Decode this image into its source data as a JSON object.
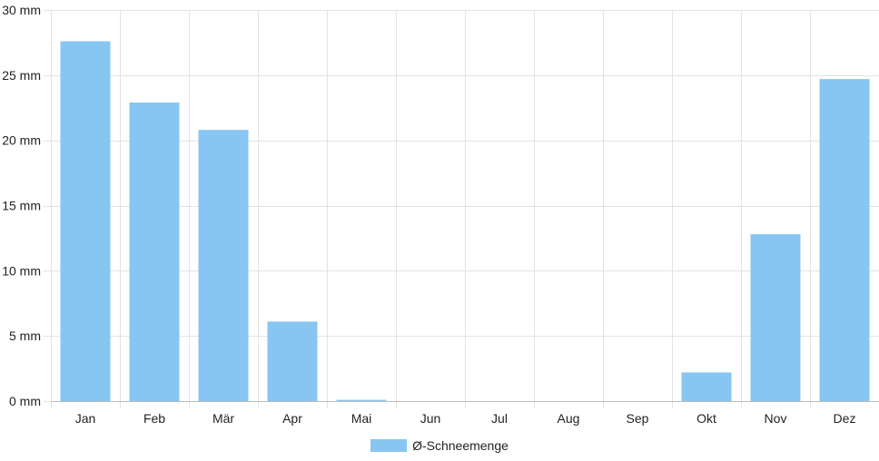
{
  "chart_data": {
    "type": "bar",
    "categories": [
      "Jan",
      "Feb",
      "Mär",
      "Apr",
      "Mai",
      "Jun",
      "Jul",
      "Aug",
      "Sep",
      "Okt",
      "Nov",
      "Dez"
    ],
    "series": [
      {
        "name": "Ø-Schneemenge",
        "values": [
          27.6,
          22.9,
          20.8,
          6.1,
          0.1,
          0,
          0,
          0,
          0,
          2.2,
          12.8,
          24.7
        ],
        "color": "#87c6f2"
      }
    ],
    "unit": "mm",
    "ylim": [
      0,
      30
    ],
    "yticks": [
      0,
      5,
      10,
      15,
      20,
      25,
      30
    ],
    "ytick_labels": [
      "0 mm",
      "5 mm",
      "10 mm",
      "15 mm",
      "20 mm",
      "25 mm",
      "30 mm"
    ],
    "grid": true,
    "legend_position": "bottom"
  },
  "colors": {
    "bar": "#87c6f2",
    "grid": "#e3e3e3",
    "axis": "#bdbdbd",
    "text": "#222222"
  }
}
